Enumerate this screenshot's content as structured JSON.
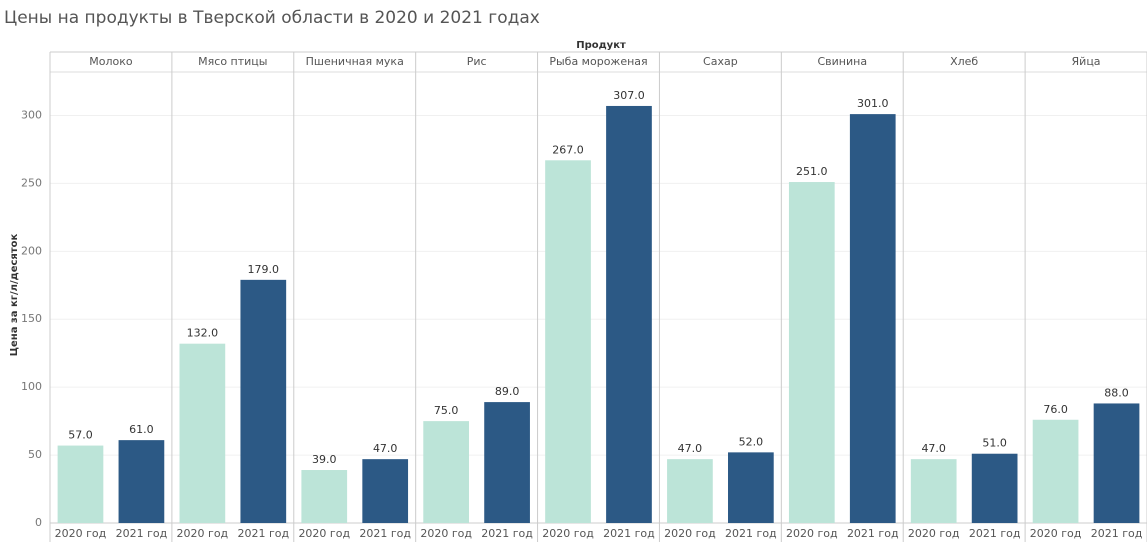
{
  "chart_data": {
    "type": "bar",
    "title": "Цены на продукты в Тверской области в 2020 и 2021 годах",
    "column_label": "Продукт",
    "y_label": "Цена за кг/л/десяток",
    "categories": [
      "Молоко",
      "Мясо птицы",
      "Пшеничная мука",
      "Рис",
      "Рыба мороженая",
      "Сахар",
      "Свинина",
      "Хлеб",
      "Яйца"
    ],
    "series": [
      {
        "name": "2020 год",
        "color": "#bce4d8",
        "values": [
          57,
          132,
          39,
          75,
          267,
          47,
          251,
          47,
          76
        ],
        "value_labels": [
          "57.0",
          "132.0",
          "39.0",
          "75.0",
          "267.0",
          "47.0",
          "251.0",
          "47.0",
          "76.0"
        ]
      },
      {
        "name": "2021 год",
        "color": "#2c5985",
        "values": [
          61,
          179,
          47,
          89,
          307,
          52,
          301,
          51,
          88
        ],
        "value_labels": [
          "61.0",
          "179.0",
          "47.0",
          "89.0",
          "307.0",
          "52.0",
          "301.0",
          "51.0",
          "88.0"
        ]
      }
    ],
    "ylim": [
      0,
      332
    ],
    "yticks": [
      0,
      50,
      100,
      150,
      200,
      250,
      300
    ],
    "grid": true
  }
}
